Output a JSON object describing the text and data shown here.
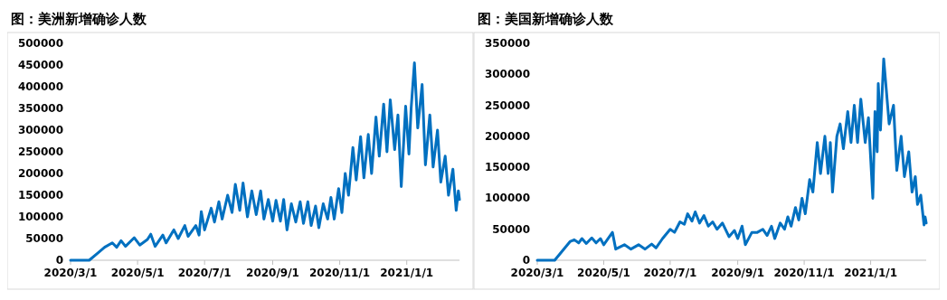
{
  "chart_data": [
    {
      "type": "line",
      "title": "图：美洲新增确诊人数",
      "grid": false,
      "marker": "none",
      "line_style": "solid",
      "xlim": [
        "2020-03-01",
        "2021-02-18"
      ],
      "xticks": [
        {
          "value": "2020-03-01",
          "label": "2020/3/1"
        },
        {
          "value": "2020-05-01",
          "label": "2020/5/1"
        },
        {
          "value": "2020-07-01",
          "label": "2020/7/1"
        },
        {
          "value": "2020-09-01",
          "label": "2020/9/1"
        },
        {
          "value": "2020-11-01",
          "label": "2020/11/1"
        },
        {
          "value": "2021-01-01",
          "label": "2021/1/1"
        }
      ],
      "ylim": [
        0,
        500000
      ],
      "yticks": [
        0,
        50000,
        100000,
        150000,
        200000,
        250000,
        300000,
        350000,
        400000,
        450000,
        500000
      ],
      "x": [
        "2020-03-01",
        "2020-03-18",
        "2020-03-25",
        "2020-04-01",
        "2020-04-08",
        "2020-04-12",
        "2020-04-16",
        "2020-04-20",
        "2020-04-28",
        "2020-05-03",
        "2020-05-10",
        "2020-05-13",
        "2020-05-17",
        "2020-05-24",
        "2020-05-27",
        "2020-06-03",
        "2020-06-07",
        "2020-06-13",
        "2020-06-16",
        "2020-06-23",
        "2020-06-26",
        "2020-06-28",
        "2020-07-01",
        "2020-07-07",
        "2020-07-10",
        "2020-07-14",
        "2020-07-17",
        "2020-07-22",
        "2020-07-26",
        "2020-07-29",
        "2020-08-02",
        "2020-08-05",
        "2020-08-09",
        "2020-08-13",
        "2020-08-17",
        "2020-08-21",
        "2020-08-24",
        "2020-08-28",
        "2020-09-01",
        "2020-09-04",
        "2020-09-08",
        "2020-09-11",
        "2020-09-14",
        "2020-09-18",
        "2020-09-22",
        "2020-09-26",
        "2020-09-29",
        "2020-10-03",
        "2020-10-06",
        "2020-10-10",
        "2020-10-13",
        "2020-10-17",
        "2020-10-21",
        "2020-10-24",
        "2020-10-27",
        "2020-10-31",
        "2020-11-03",
        "2020-11-06",
        "2020-11-09",
        "2020-11-13",
        "2020-11-16",
        "2020-11-20",
        "2020-11-23",
        "2020-11-27",
        "2020-11-30",
        "2020-12-04",
        "2020-12-07",
        "2020-12-11",
        "2020-12-14",
        "2020-12-17",
        "2020-12-21",
        "2020-12-24",
        "2020-12-27",
        "2020-12-31",
        "2021-01-03",
        "2021-01-05",
        "2021-01-08",
        "2021-01-11",
        "2021-01-15",
        "2021-01-18",
        "2021-01-22",
        "2021-01-25",
        "2021-01-29",
        "2021-02-01",
        "2021-02-05",
        "2021-02-08",
        "2021-02-12",
        "2021-02-15",
        "2021-02-17",
        "2021-02-18"
      ],
      "series": [
        {
          "color": "#0070c0",
          "values": [
            0,
            0,
            15000,
            30000,
            40000,
            30000,
            45000,
            32000,
            52000,
            35000,
            48000,
            60000,
            32000,
            58000,
            40000,
            70000,
            50000,
            80000,
            55000,
            80000,
            58000,
            112000,
            70000,
            120000,
            88000,
            135000,
            95000,
            150000,
            110000,
            175000,
            115000,
            178000,
            100000,
            160000,
            105000,
            160000,
            95000,
            140000,
            90000,
            138000,
            90000,
            140000,
            70000,
            130000,
            88000,
            135000,
            85000,
            135000,
            80000,
            125000,
            75000,
            130000,
            95000,
            145000,
            95000,
            165000,
            110000,
            200000,
            150000,
            260000,
            185000,
            285000,
            190000,
            290000,
            200000,
            330000,
            240000,
            360000,
            250000,
            370000,
            255000,
            335000,
            170000,
            355000,
            245000,
            350000,
            455000,
            305000,
            405000,
            220000,
            335000,
            215000,
            300000,
            180000,
            240000,
            150000,
            210000,
            115000,
            160000,
            140000
          ]
        }
      ]
    },
    {
      "type": "line",
      "title": "图：美国新增确诊人数",
      "grid": false,
      "marker": "none",
      "line_style": "solid",
      "xlim": [
        "2020-03-01",
        "2021-02-21"
      ],
      "xticks": [
        {
          "value": "2020-03-01",
          "label": "2020/3/1"
        },
        {
          "value": "2020-05-01",
          "label": "2020/5/1"
        },
        {
          "value": "2020-07-01",
          "label": "2020/7/1"
        },
        {
          "value": "2020-09-01",
          "label": "2020/9/1"
        },
        {
          "value": "2020-11-01",
          "label": "2020/11/1"
        },
        {
          "value": "2021-01-01",
          "label": "2021/1/1"
        }
      ],
      "ylim": [
        0,
        350000
      ],
      "yticks": [
        0,
        50000,
        100000,
        150000,
        200000,
        250000,
        300000,
        350000
      ],
      "x": [
        "2020-03-01",
        "2020-03-17",
        "2020-03-24",
        "2020-03-31",
        "2020-04-04",
        "2020-04-08",
        "2020-04-11",
        "2020-04-15",
        "2020-04-20",
        "2020-04-24",
        "2020-04-28",
        "2020-05-01",
        "2020-05-09",
        "2020-05-12",
        "2020-05-20",
        "2020-05-26",
        "2020-06-02",
        "2020-06-08",
        "2020-06-14",
        "2020-06-18",
        "2020-06-24",
        "2020-07-01",
        "2020-07-05",
        "2020-07-10",
        "2020-07-14",
        "2020-07-17",
        "2020-07-21",
        "2020-07-24",
        "2020-07-28",
        "2020-08-01",
        "2020-08-05",
        "2020-08-09",
        "2020-08-13",
        "2020-08-18",
        "2020-08-24",
        "2020-08-29",
        "2020-09-01",
        "2020-09-05",
        "2020-09-08",
        "2020-09-14",
        "2020-09-19",
        "2020-09-24",
        "2020-09-28",
        "2020-10-02",
        "2020-10-05",
        "2020-10-10",
        "2020-10-14",
        "2020-10-17",
        "2020-10-20",
        "2020-10-24",
        "2020-10-27",
        "2020-10-30",
        "2020-11-02",
        "2020-11-06",
        "2020-11-09",
        "2020-11-13",
        "2020-11-16",
        "2020-11-20",
        "2020-11-23",
        "2020-11-25",
        "2020-11-27",
        "2020-12-01",
        "2020-12-04",
        "2020-12-07",
        "2020-12-11",
        "2020-12-14",
        "2020-12-17",
        "2020-12-20",
        "2020-12-23",
        "2020-12-27",
        "2020-12-30",
        "2021-01-03",
        "2021-01-05",
        "2021-01-07",
        "2021-01-08",
        "2021-01-10",
        "2021-01-13",
        "2021-01-18",
        "2021-01-22",
        "2021-01-25",
        "2021-01-29",
        "2021-02-01",
        "2021-02-05",
        "2021-02-08",
        "2021-02-11",
        "2021-02-13",
        "2021-02-16",
        "2021-02-19",
        "2021-02-20",
        "2021-02-21"
      ],
      "series": [
        {
          "color": "#0070c0",
          "values": [
            0,
            0,
            15000,
            30000,
            33000,
            28000,
            35000,
            27000,
            36000,
            28000,
            35000,
            25000,
            45000,
            18000,
            25000,
            18000,
            25000,
            18000,
            26000,
            20000,
            35000,
            50000,
            45000,
            62000,
            58000,
            75000,
            63000,
            78000,
            60000,
            72000,
            55000,
            62000,
            50000,
            60000,
            38000,
            48000,
            35000,
            55000,
            25000,
            45000,
            45000,
            50000,
            40000,
            55000,
            35000,
            60000,
            50000,
            70000,
            55000,
            85000,
            65000,
            100000,
            75000,
            130000,
            110000,
            190000,
            140000,
            200000,
            140000,
            190000,
            110000,
            200000,
            220000,
            180000,
            240000,
            190000,
            250000,
            190000,
            260000,
            190000,
            230000,
            100000,
            240000,
            175000,
            285000,
            210000,
            325000,
            220000,
            250000,
            145000,
            200000,
            135000,
            175000,
            110000,
            135000,
            90000,
            105000,
            57000,
            70000,
            60000
          ]
        }
      ]
    }
  ]
}
